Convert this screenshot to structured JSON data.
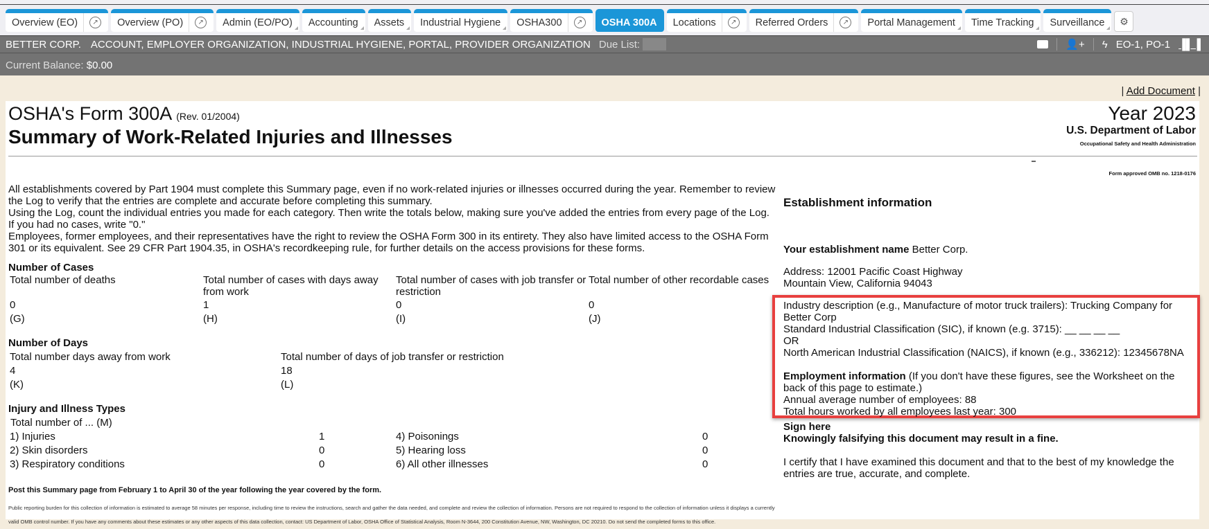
{
  "tabs": [
    {
      "label": "Overview (EO)",
      "ext": true
    },
    {
      "label": "Overview (PO)",
      "ext": true
    },
    {
      "label": "Admin (EO/PO)",
      "dropdown": true
    },
    {
      "label": "Accounting",
      "dropdown": true
    },
    {
      "label": "Assets",
      "dropdown": true
    },
    {
      "label": "Industrial Hygiene",
      "dropdown": true
    },
    {
      "label": "OSHA300",
      "ext": true
    },
    {
      "label": "OSHA 300A",
      "active": true
    },
    {
      "label": "Locations",
      "ext": true
    },
    {
      "label": "Referred Orders",
      "ext": true
    },
    {
      "label": "Portal Management",
      "dropdown": true
    },
    {
      "label": "Time Tracking",
      "dropdown": true
    },
    {
      "label": "Surveillance",
      "dropdown": true
    }
  ],
  "header": {
    "company": "BETTER CORP.",
    "roles": "ACCOUNT, EMPLOYER ORGANIZATION, INDUSTRIAL HYGIENE, PORTAL, PROVIDER ORGANIZATION",
    "due_list_label": "Due List:",
    "org_ids": "EO-1, PO-1"
  },
  "balance": {
    "label": "Current Balance:",
    "value": "$0.00"
  },
  "add_document": "Add Document",
  "form": {
    "title": "OSHA's Form 300A",
    "rev": "(Rev. 01/2004)",
    "subtitle": "Summary of Work-Related Injuries and Illnesses",
    "year": "Year 2023",
    "dept": "U.S. Department of Labor",
    "agency": "Occupational Safety and Health Administration",
    "omb": "Form approved OMB no. 1218-0176",
    "intro": [
      "All establishments covered by Part 1904 must complete this Summary page, even if no work-related injuries or illnesses occurred during the year. Remember to review the Log to verify that the entries are complete and accurate before completing this summary.",
      "Using the Log, count the individual entries you made for each category. Then write the totals below, making sure you've added the entries from every page of the Log. If you had no cases, write \"0.\"",
      "Employees, former employees, and their representatives have the right to review the OSHA Form 300 in its entirety. They also have limited access to the OSHA Form 301 or its equivalent. See 29 CFR Part 1904.35, in OSHA's recordkeeping rule, for further details on the access provisions for these forms."
    ],
    "cases": {
      "heading": "Number of Cases",
      "cols": [
        {
          "label": "Total number of deaths",
          "value": "0",
          "code": "(G)"
        },
        {
          "label": "Total number of cases with days away from work",
          "value": "1",
          "code": "(H)"
        },
        {
          "label": "Total number of cases with job transfer or restriction",
          "value": "0",
          "code": "(I)"
        },
        {
          "label": "Total number of other recordable cases",
          "value": "0",
          "code": "(J)"
        }
      ]
    },
    "days": {
      "heading": "Number of Days",
      "cols": [
        {
          "label": "Total number days away from work",
          "value": "4",
          "code": "(K)"
        },
        {
          "label": "Total number of days of job transfer or restriction",
          "value": "18",
          "code": "(L)"
        }
      ]
    },
    "types": {
      "heading": "Injury and Illness Types",
      "sub": "Total number of ... (M)",
      "items": [
        {
          "label": "1) Injuries",
          "value": "1"
        },
        {
          "label": "2) Skin disorders",
          "value": "0"
        },
        {
          "label": "3) Respiratory conditions",
          "value": "0"
        },
        {
          "label": "4) Poisonings",
          "value": "0"
        },
        {
          "label": "5) Hearing loss",
          "value": "0"
        },
        {
          "label": "6) All other illnesses",
          "value": "0"
        }
      ]
    },
    "post_notice": "Post this Summary page from February 1 to April 30 of the year following the year covered by the form.",
    "burden": "Public reporting burden for this collection of information is estimated to average 58 minutes per response, including time to review the instructions, search and gather the data needed, and complete and review the collection of information. Persons are not required to respond to the collection of information unless it displays a currently valid OMB control number. If you have any comments about these estimates or any other aspects of this data collection, contact: US Department of Labor, OSHA Office of Statistical Analysis, Room N-3644, 200 Constitution Avenue, NW, Washington, DC 20210. Do not send the completed forms to this office.",
    "establishment": {
      "heading": "Establishment information",
      "name_label": "Your establishment name",
      "name": "Better Corp.",
      "address_line1": "Address: 12001 Pacific Coast Highway",
      "address_line2": "Mountain View, California 94043",
      "industry": "Industry description (e.g., Manufacture of motor truck trailers): Trucking Company for Better Corp",
      "sic": "Standard Industrial Classification (SIC), if known (e.g. 3715): __ __ __ __",
      "or": "OR",
      "naics": "North American Industrial Classification (NAICS), if known (e.g., 336212): 12345678NA",
      "employment_label": "Employment information",
      "employment_note": "(If you don't have these figures, see the Worksheet on the back of this page to estimate.)",
      "employees": "Annual average number of employees: 88",
      "hours": "Total hours worked by all employees last year: 300"
    },
    "sign": {
      "heading": "Sign here",
      "warning": "Knowingly falsifying this document may result in a fine.",
      "certify": "I certify that I have examined this document and that to the best of my knowledge the entries are true, accurate, and complete."
    }
  },
  "colors": {
    "tab_accent": "#1b96d8",
    "header_bg": "#737373",
    "highlight_border": "#e8403f",
    "page_bg": "#f4ecdd"
  }
}
